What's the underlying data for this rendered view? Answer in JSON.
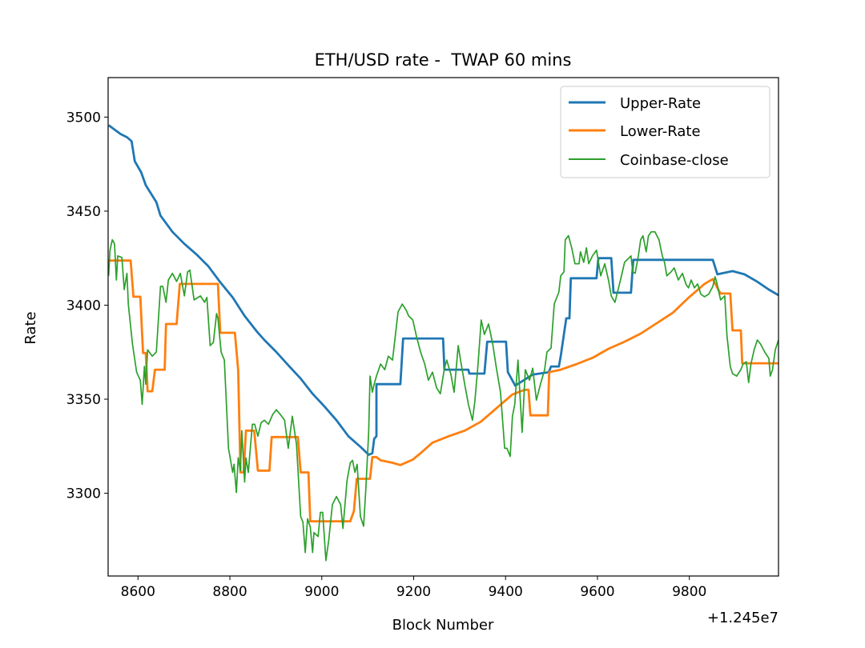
{
  "chart_data": {
    "type": "line",
    "title": "ETH/USD rate -  TWAP 60 mins",
    "xlabel": "Block Number",
    "ylabel": "Rate",
    "x_offset_text": "+1.245e7",
    "xlim": [
      8535,
      9994
    ],
    "ylim": [
      3256,
      3521
    ],
    "xticks": [
      8600,
      8800,
      9000,
      9200,
      9400,
      9600,
      9800
    ],
    "yticks": [
      3300,
      3350,
      3400,
      3450,
      3500
    ],
    "grid": false,
    "legend": "top-right",
    "series": [
      {
        "name": "Upper-Rate",
        "color": "#1f77b4",
        "x": [
          8536,
          8562,
          8576,
          8586,
          8593,
          8607,
          8617,
          8640,
          8649,
          8675,
          8701,
          8727,
          8753,
          8779,
          8806,
          8832,
          8858,
          8875,
          8901,
          8928,
          8954,
          8980,
          9006,
          9032,
          9058,
          9084,
          9102,
          9110,
          9114,
          9119,
          9119,
          9171,
          9177,
          9264,
          9267,
          9319,
          9321,
          9354,
          9360,
          9401,
          9405,
          9421,
          9459,
          9494,
          9499,
          9516,
          9520,
          9532,
          9539,
          9542,
          9598,
          9602,
          9630,
          9635,
          9673,
          9678,
          9851,
          9861,
          9894,
          9920,
          9947,
          9973,
          9994
        ],
        "y": [
          3495.7,
          3491.0,
          3489.3,
          3487.2,
          3476.5,
          3470.6,
          3463.8,
          3454.8,
          3447.6,
          3439.0,
          3432.6,
          3427.1,
          3420.7,
          3412.2,
          3404.1,
          3394.3,
          3386.2,
          3381.5,
          3375.1,
          3367.8,
          3361.0,
          3352.9,
          3346.1,
          3338.8,
          3330.3,
          3324.7,
          3320.5,
          3321.3,
          3329.0,
          3330.3,
          3358.0,
          3358.0,
          3382.3,
          3382.3,
          3365.7,
          3365.7,
          3363.6,
          3363.6,
          3380.6,
          3380.6,
          3364.4,
          3357.2,
          3363.1,
          3364.4,
          3367.4,
          3367.4,
          3372.9,
          3393.0,
          3393.0,
          3414.3,
          3414.3,
          3425.0,
          3425.0,
          3406.6,
          3406.6,
          3424.1,
          3424.1,
          3416.4,
          3418.1,
          3416.4,
          3412.6,
          3408.3,
          3405.3
        ]
      },
      {
        "name": "Lower-Rate",
        "color": "#ff7f0e",
        "x": [
          8536,
          8584,
          8590,
          8605,
          8611,
          8617,
          8621,
          8631,
          8637,
          8658,
          8661,
          8684,
          8691,
          8774,
          8779,
          8811,
          8818,
          8823,
          8830,
          8835,
          8853,
          8861,
          8886,
          8891,
          8948,
          8954,
          8971,
          8975,
          9062,
          9070,
          9076,
          9105,
          9110,
          9119,
          9128,
          9154,
          9171,
          9198,
          9215,
          9241,
          9276,
          9311,
          9346,
          9380,
          9415,
          9441,
          9450,
          9454,
          9492,
          9495,
          9520,
          9555,
          9590,
          9624,
          9659,
          9694,
          9729,
          9764,
          9799,
          9833,
          9851,
          9863,
          9868,
          9889,
          9894,
          9912,
          9915,
          9994
        ],
        "y": [
          3423.7,
          3423.7,
          3404.5,
          3404.5,
          3374.6,
          3374.6,
          3354.2,
          3354.2,
          3365.7,
          3365.7,
          3390.0,
          3390.0,
          3411.3,
          3411.3,
          3385.3,
          3385.3,
          3365.3,
          3311.1,
          3311.1,
          3333.3,
          3333.3,
          3312.0,
          3312.0,
          3329.9,
          3329.9,
          3311.1,
          3311.1,
          3285.1,
          3285.1,
          3290.6,
          3307.7,
          3307.7,
          3319.2,
          3319.2,
          3317.5,
          3316.2,
          3315.0,
          3317.9,
          3321.3,
          3326.9,
          3330.3,
          3333.3,
          3338.0,
          3345.2,
          3352.5,
          3355.0,
          3355.0,
          3341.4,
          3341.4,
          3364.4,
          3365.7,
          3368.7,
          3372.1,
          3376.8,
          3380.6,
          3384.9,
          3390.4,
          3396.0,
          3404.1,
          3411.3,
          3413.9,
          3408.3,
          3406.2,
          3406.2,
          3386.6,
          3386.6,
          3369.1,
          3369.1
        ]
      },
      {
        "name": "Coinbase-close",
        "color": "#2ca02c",
        "x": [
          8536,
          8539,
          8544,
          8549,
          8553,
          8556,
          8565,
          8570,
          8576,
          8579,
          8588,
          8597,
          8605,
          8609,
          8614,
          8617,
          8621,
          8631,
          8640,
          8649,
          8654,
          8661,
          8666,
          8675,
          8684,
          8692,
          8701,
          8708,
          8713,
          8722,
          8736,
          8745,
          8750,
          8757,
          8764,
          8771,
          8774,
          8781,
          8788,
          8797,
          8806,
          8809,
          8814,
          8818,
          8823,
          8826,
          8832,
          8835,
          8840,
          8849,
          8854,
          8861,
          8868,
          8875,
          8884,
          8893,
          8901,
          8910,
          8919,
          8927,
          8936,
          8945,
          8954,
          8959,
          8964,
          8969,
          8975,
          8980,
          8983,
          8992,
          8997,
          9002,
          9009,
          9015,
          9023,
          9032,
          9041,
          9046,
          9055,
          9062,
          9067,
          9072,
          9077,
          9084,
          9091,
          9096,
          9102,
          9105,
          9110,
          9114,
          9119,
          9128,
          9137,
          9145,
          9154,
          9166,
          9175,
          9184,
          9189,
          9198,
          9206,
          9215,
          9224,
          9232,
          9241,
          9250,
          9258,
          9267,
          9272,
          9281,
          9288,
          9297,
          9302,
          9311,
          9319,
          9328,
          9333,
          9340,
          9347,
          9354,
          9363,
          9372,
          9380,
          9389,
          9398,
          9403,
          9410,
          9415,
          9420,
          9427,
          9436,
          9443,
          9452,
          9459,
          9467,
          9476,
          9485,
          9490,
          9499,
          9506,
          9516,
          9520,
          9527,
          9530,
          9537,
          9544,
          9551,
          9560,
          9563,
          9570,
          9576,
          9581,
          9589,
          9598,
          9607,
          9616,
          9624,
          9630,
          9638,
          9650,
          9659,
          9673,
          9677,
          9682,
          9689,
          9694,
          9699,
          9706,
          9711,
          9717,
          9725,
          9734,
          9741,
          9746,
          9751,
          9760,
          9767,
          9776,
          9785,
          9793,
          9798,
          9804,
          9811,
          9818,
          9825,
          9833,
          9842,
          9851,
          9856,
          9859,
          9868,
          9877,
          9882,
          9889,
          9894,
          9903,
          9912,
          9917,
          9924,
          9929,
          9934,
          9941,
          9948,
          9955,
          9964,
          9973,
          9976,
          9981,
          9987,
          9994
        ],
        "y": [
          3415.6,
          3429.2,
          3434.8,
          3432.6,
          3413.4,
          3426.2,
          3425.4,
          3408.3,
          3416.9,
          3400.6,
          3379.3,
          3364.4,
          3360.1,
          3347.3,
          3367.4,
          3358.0,
          3376.3,
          3372.9,
          3375.1,
          3410.0,
          3410.0,
          3401.5,
          3413.4,
          3416.9,
          3412.6,
          3416.9,
          3404.9,
          3417.7,
          3418.6,
          3402.8,
          3404.9,
          3401.5,
          3404.1,
          3378.5,
          3380.2,
          3395.5,
          3393.0,
          3375.1,
          3370.8,
          3323.9,
          3311.1,
          3315.4,
          3300.4,
          3318.8,
          3312.0,
          3333.3,
          3306.0,
          3318.8,
          3311.1,
          3336.7,
          3336.7,
          3330.3,
          3337.5,
          3338.8,
          3336.7,
          3341.8,
          3344.4,
          3341.8,
          3338.8,
          3323.9,
          3340.9,
          3326.0,
          3287.6,
          3284.7,
          3268.5,
          3286.4,
          3282.1,
          3268.5,
          3279.1,
          3277.0,
          3289.8,
          3289.8,
          3264.2,
          3274.9,
          3294.0,
          3298.3,
          3294.0,
          3281.3,
          3306.8,
          3316.2,
          3317.5,
          3311.1,
          3315.4,
          3287.6,
          3282.5,
          3302.6,
          3332.4,
          3362.3,
          3353.7,
          3358.0,
          3362.3,
          3368.7,
          3365.7,
          3372.9,
          3370.8,
          3396.4,
          3400.6,
          3397.2,
          3394.3,
          3392.1,
          3383.6,
          3375.1,
          3368.7,
          3360.1,
          3364.4,
          3355.9,
          3352.9,
          3366.5,
          3370.8,
          3363.1,
          3353.7,
          3378.5,
          3370.8,
          3358.0,
          3347.3,
          3338.8,
          3348.6,
          3368.2,
          3392.1,
          3384.4,
          3390.0,
          3379.3,
          3366.5,
          3353.7,
          3323.9,
          3323.9,
          3319.6,
          3340.9,
          3347.3,
          3370.8,
          3332.4,
          3365.7,
          3360.1,
          3366.5,
          3349.5,
          3358.0,
          3365.7,
          3375.1,
          3377.2,
          3400.6,
          3407.0,
          3415.6,
          3417.7,
          3434.8,
          3436.9,
          3430.5,
          3422.0,
          3422.0,
          3428.4,
          3422.8,
          3430.5,
          3422.0,
          3426.2,
          3429.2,
          3415.6,
          3422.0,
          3413.4,
          3404.9,
          3401.5,
          3413.4,
          3422.8,
          3426.2,
          3417.7,
          3416.9,
          3426.2,
          3434.8,
          3436.9,
          3428.4,
          3436.9,
          3439.0,
          3439.0,
          3434.8,
          3426.2,
          3422.8,
          3415.6,
          3417.7,
          3419.8,
          3413.4,
          3416.9,
          3410.9,
          3409.2,
          3413.4,
          3409.2,
          3411.3,
          3405.8,
          3404.5,
          3405.8,
          3410.0,
          3415.1,
          3412.6,
          3402.8,
          3404.9,
          3383.6,
          3367.4,
          3363.6,
          3362.3,
          3365.7,
          3368.7,
          3369.9,
          3358.9,
          3368.7,
          3376.3,
          3381.5,
          3379.3,
          3375.1,
          3371.7,
          3362.3,
          3365.7,
          3376.3,
          3381.5
        ]
      }
    ]
  }
}
